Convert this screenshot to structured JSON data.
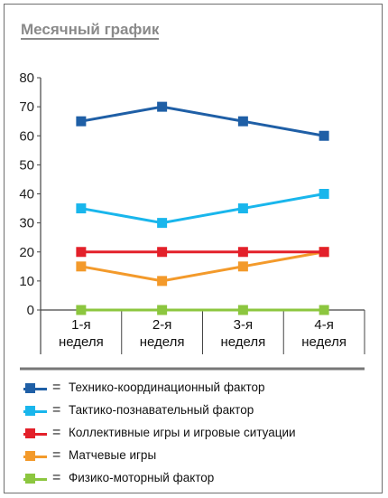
{
  "title": "Месячный график",
  "chart_data": {
    "type": "line",
    "title": "Месячный график",
    "categories": [
      "1-я неделя",
      "2-я неделя",
      "3-я неделя",
      "4-я неделя"
    ],
    "category_lines": [
      [
        "1-я",
        "неделя"
      ],
      [
        "2-я",
        "неделя"
      ],
      [
        "3-я",
        "неделя"
      ],
      [
        "4-я",
        "неделя"
      ]
    ],
    "ylim": [
      0,
      80
    ],
    "yticks": [
      0,
      10,
      20,
      30,
      40,
      50,
      60,
      70,
      80
    ],
    "grid": false,
    "legend_position": "bottom",
    "legend_eq": "=",
    "series": [
      {
        "name": "Технико-координационный фактор",
        "values": [
          65,
          70,
          65,
          60
        ],
        "color": "#1f5fa6"
      },
      {
        "name": "Тактико-познавательный фактор",
        "values": [
          35,
          30,
          35,
          40
        ],
        "color": "#19b6ec"
      },
      {
        "name": "Коллективные игры и игровые ситуации",
        "values": [
          20,
          20,
          20,
          20
        ],
        "color": "#e3202a"
      },
      {
        "name": "Матчевые игры",
        "values": [
          15,
          10,
          15,
          20
        ],
        "color": "#f39a2b"
      },
      {
        "name": "Физико-моторный фактор",
        "values": [
          0,
          0,
          0,
          0
        ],
        "color": "#8cc63f"
      }
    ]
  }
}
